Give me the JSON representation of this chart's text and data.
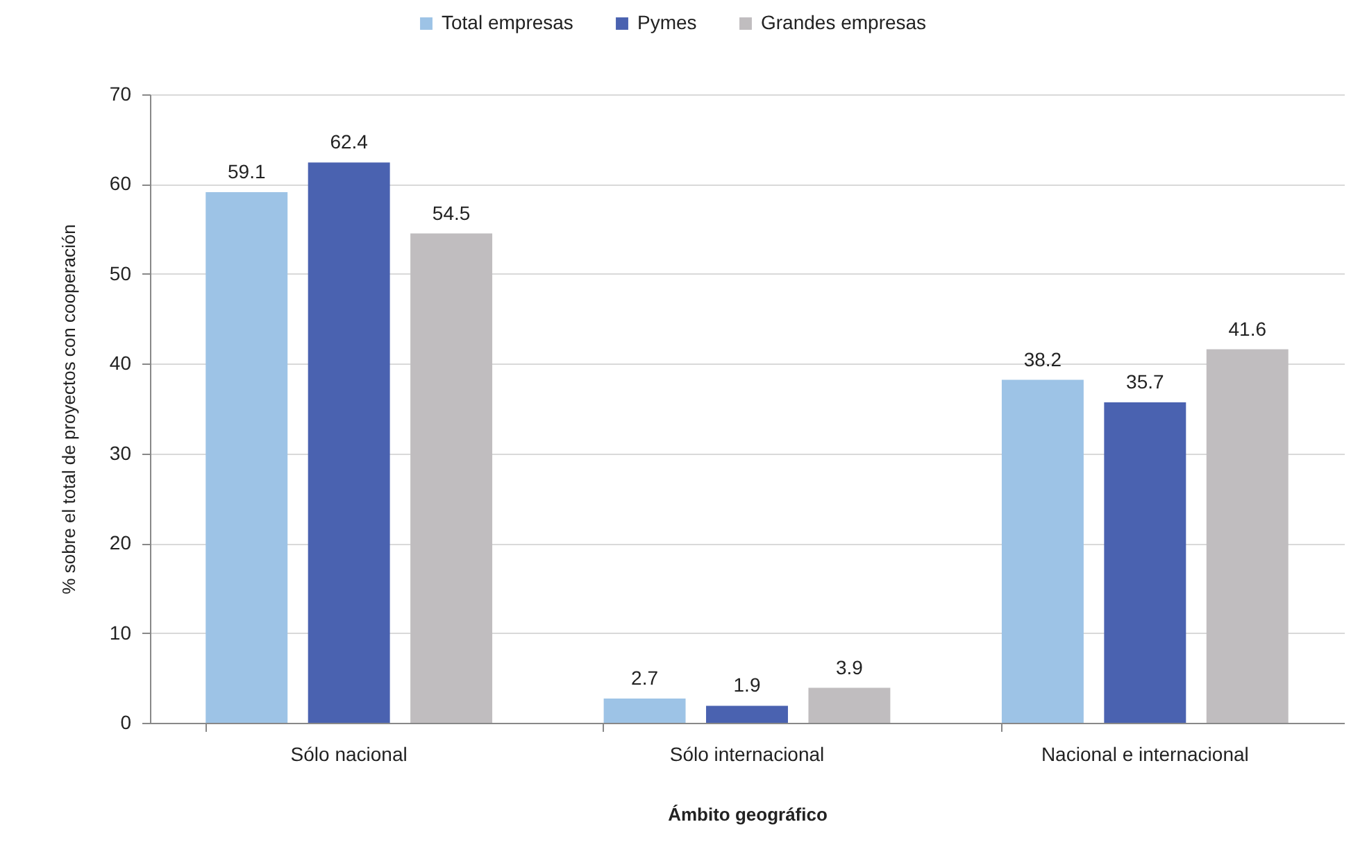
{
  "chart_data": {
    "type": "bar",
    "xlabel": "Ámbito geográfico",
    "ylabel": "% sobre el total de proyectos con cooperación",
    "categories": [
      "Sólo nacional",
      "Sólo internacional",
      "Nacional e internacional"
    ],
    "series": [
      {
        "name": "Total empresas",
        "color": "#9dc3e6",
        "values": [
          59.1,
          2.7,
          38.2
        ]
      },
      {
        "name": "Pymes",
        "color": "#4a62b0",
        "values": [
          62.4,
          1.9,
          35.7
        ]
      },
      {
        "name": "Grandes empresas",
        "color": "#c0bdbf",
        "values": [
          54.5,
          3.9,
          41.6
        ]
      }
    ],
    "ylim": [
      0,
      70
    ],
    "yticks": [
      0,
      10,
      20,
      30,
      40,
      50,
      60,
      70
    ],
    "grid": "y",
    "legend": "top",
    "data_labels": true
  }
}
